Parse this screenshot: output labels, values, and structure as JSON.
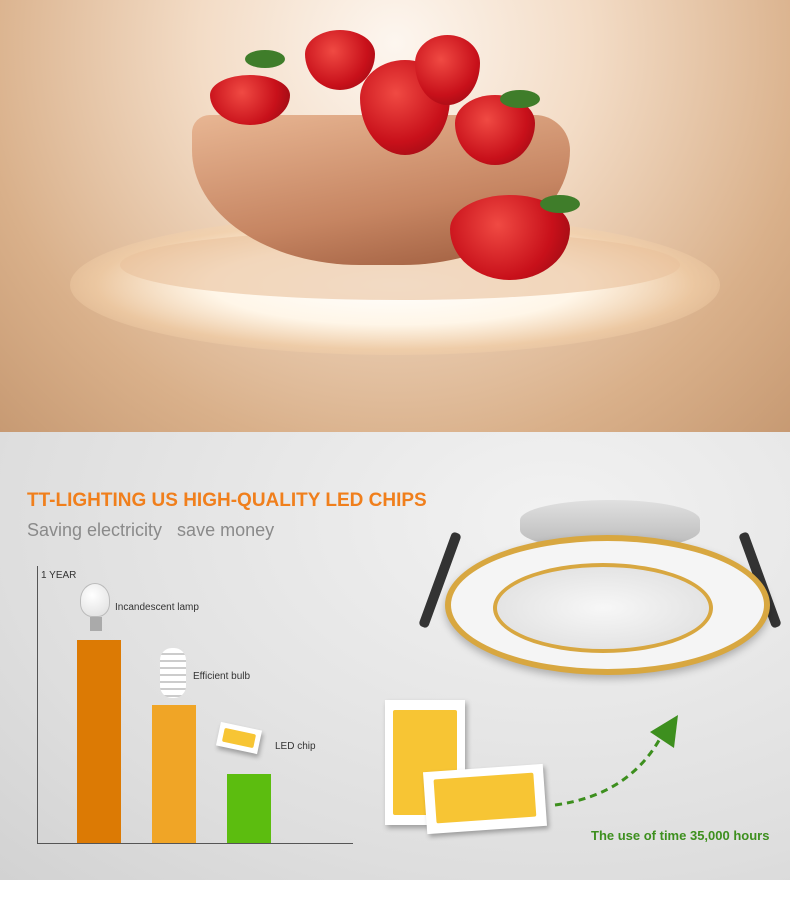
{
  "banner": {
    "title": "TT-LIGHTING US HIGH-QUALITY LED CHIPS",
    "subtitle": "Saving electricity   save money"
  },
  "comparison": {
    "axis_label": "1 YEAR",
    "items": [
      {
        "label": "Incandescent lamp",
        "relative_level": 1.0,
        "color": "#dc7a04"
      },
      {
        "label": "Efficient bulb",
        "relative_level": 0.68,
        "color": "#f0a526"
      },
      {
        "label": "LED chip",
        "relative_level": 0.34,
        "color": "#5cbd0f"
      }
    ]
  },
  "lifetime": {
    "text": "The use of time 35,000 hours",
    "color": "#3d8f1e"
  },
  "colors": {
    "title": "#f07f1c",
    "subtitle": "#8a8a8a",
    "trim": "#d8a740"
  }
}
